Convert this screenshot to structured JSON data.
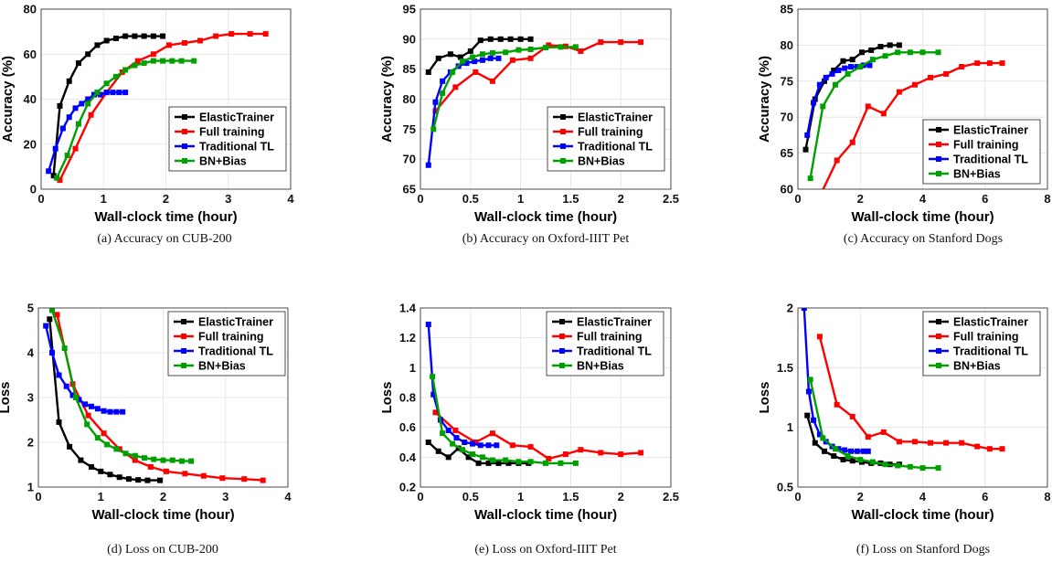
{
  "legend_entries": [
    "ElasticTrainer",
    "Full training",
    "Traditional TL",
    "BN+Bias"
  ],
  "series_colors": {
    "ElasticTrainer": "#000000",
    "Full training": "#ff0000",
    "Traditional TL": "#0000ff",
    "BN+Bias": "#00a000"
  },
  "chart_data": [
    {
      "type": "line",
      "caption": "(a) Accuracy on CUB-200",
      "xlabel": "Wall-clock time (hour)",
      "ylabel": "Accuracy (%)",
      "xlim": [
        0,
        4
      ],
      "ylim": [
        0,
        80
      ],
      "xticks": [
        "0",
        "1",
        "2",
        "3",
        "4"
      ],
      "yticks": [
        "0",
        "20",
        "40",
        "60",
        "80"
      ],
      "grid": true,
      "legend_position": "lower-right",
      "series": [
        {
          "name": "ElasticTrainer",
          "x": [
            0.2,
            0.3,
            0.45,
            0.6,
            0.75,
            0.9,
            1.05,
            1.2,
            1.35,
            1.5,
            1.65,
            1.8,
            1.95
          ],
          "y": [
            6,
            37,
            48,
            56,
            60,
            64,
            66,
            67,
            68,
            68,
            68,
            68,
            68
          ]
        },
        {
          "name": "Full training",
          "x": [
            0.3,
            0.55,
            0.8,
            1.05,
            1.3,
            1.55,
            1.8,
            2.05,
            2.3,
            2.55,
            2.8,
            3.05,
            3.35,
            3.6
          ],
          "y": [
            4,
            18,
            33,
            43,
            52,
            57,
            60,
            64,
            65,
            66,
            68,
            69,
            69,
            69
          ]
        },
        {
          "name": "Traditional TL",
          "x": [
            0.12,
            0.23,
            0.35,
            0.45,
            0.55,
            0.65,
            0.75,
            0.85,
            0.95,
            1.05,
            1.15,
            1.25,
            1.35
          ],
          "y": [
            8,
            18,
            27,
            32,
            36,
            38,
            40,
            42,
            42,
            43,
            43,
            43,
            43
          ]
        },
        {
          "name": "BN+Bias",
          "x": [
            0.25,
            0.42,
            0.6,
            0.75,
            0.9,
            1.05,
            1.2,
            1.35,
            1.5,
            1.65,
            1.8,
            1.95,
            2.1,
            2.25,
            2.45
          ],
          "y": [
            5,
            15,
            29,
            38,
            43,
            47,
            50,
            53,
            55,
            56,
            57,
            57,
            57,
            57,
            57
          ]
        }
      ]
    },
    {
      "type": "line",
      "caption": "(b) Accuracy on Oxford-IIIT Pet",
      "xlabel": "Wall-clock time (hour)",
      "ylabel": "Accuracy (%)",
      "xlim": [
        0,
        2.5
      ],
      "ylim": [
        65,
        95
      ],
      "xticks": [
        "0",
        "0.5",
        "1",
        "1.5",
        "2",
        "2.5"
      ],
      "yticks": [
        "65",
        "70",
        "75",
        "80",
        "85",
        "90",
        "95"
      ],
      "grid": true,
      "legend_position": "lower-right",
      "series": [
        {
          "name": "ElasticTrainer",
          "x": [
            0.08,
            0.18,
            0.3,
            0.4,
            0.5,
            0.6,
            0.7,
            0.8,
            0.9,
            1.0,
            1.1
          ],
          "y": [
            84.5,
            86.8,
            87.5,
            87,
            88,
            89.8,
            90,
            90,
            90,
            90,
            90
          ]
        },
        {
          "name": "Full training",
          "x": [
            0.15,
            0.35,
            0.55,
            0.72,
            0.92,
            1.1,
            1.28,
            1.45,
            1.6,
            1.8,
            2.0,
            2.2
          ],
          "y": [
            78,
            82,
            84.5,
            83,
            86.5,
            86.8,
            89,
            88.8,
            88,
            89.5,
            89.5,
            89.5
          ]
        },
        {
          "name": "Traditional TL",
          "x": [
            0.08,
            0.15,
            0.22,
            0.3,
            0.38,
            0.46,
            0.54,
            0.62,
            0.7,
            0.78
          ],
          "y": [
            69,
            79.5,
            83,
            84.5,
            85.5,
            86,
            86.3,
            86.5,
            86.8,
            86.8
          ]
        },
        {
          "name": "BN+Bias",
          "x": [
            0.13,
            0.22,
            0.32,
            0.42,
            0.52,
            0.62,
            0.72,
            0.85,
            0.98,
            1.1,
            1.25,
            1.4,
            1.55
          ],
          "y": [
            75,
            81,
            84.5,
            86.3,
            87,
            87.5,
            87.7,
            87.8,
            88.2,
            88.3,
            88.6,
            88.7,
            88.7
          ]
        }
      ]
    },
    {
      "type": "line",
      "caption": "(c) Accuracy on Stanford Dogs",
      "xlabel": "Wall-clock time (hour)",
      "ylabel": "Accuracy (%)",
      "xlim": [
        0,
        8
      ],
      "ylim": [
        60,
        85
      ],
      "xticks": [
        "0",
        "2",
        "4",
        "6",
        "8"
      ],
      "yticks": [
        "60",
        "65",
        "70",
        "75",
        "80",
        "85"
      ],
      "grid": true,
      "legend_position": "lower-right",
      "series": [
        {
          "name": "ElasticTrainer",
          "x": [
            0.25,
            0.55,
            0.85,
            1.15,
            1.45,
            1.75,
            2.05,
            2.35,
            2.65,
            2.95,
            3.25
          ],
          "y": [
            65.5,
            72.5,
            75,
            76.5,
            77.8,
            78,
            79,
            79.3,
            79.8,
            80,
            80
          ]
        },
        {
          "name": "Full training",
          "x": [
            0.7,
            1.25,
            1.75,
            2.25,
            2.75,
            3.25,
            3.75,
            4.25,
            4.75,
            5.25,
            5.75,
            6.15,
            6.55
          ],
          "y": [
            59,
            64,
            66.5,
            71.5,
            70.5,
            73.5,
            74.5,
            75.5,
            76,
            77,
            77.5,
            77.5,
            77.5
          ]
        },
        {
          "name": "Traditional TL",
          "x": [
            0.3,
            0.5,
            0.7,
            0.9,
            1.1,
            1.3,
            1.5,
            1.7,
            1.9,
            2.1,
            2.3
          ],
          "y": [
            67.5,
            72,
            74.5,
            75.5,
            76,
            76.5,
            76.8,
            77,
            77,
            77.2,
            77.2
          ]
        },
        {
          "name": "BN+Bias",
          "x": [
            0.4,
            0.8,
            1.2,
            1.6,
            2.0,
            2.4,
            2.8,
            3.2,
            3.6,
            4.0,
            4.5
          ],
          "y": [
            61.5,
            71.5,
            74.5,
            76,
            77,
            78,
            78.5,
            79,
            79,
            79,
            79
          ]
        }
      ]
    },
    {
      "type": "line",
      "caption": "(d) Loss on CUB-200",
      "xlabel": "Wall-clock time (hour)",
      "ylabel": "Loss",
      "xlim": [
        0,
        4
      ],
      "ylim": [
        1,
        5
      ],
      "xticks": [
        "0",
        "1",
        "2",
        "3",
        "4"
      ],
      "yticks": [
        "1",
        "2",
        "3",
        "4",
        "5"
      ],
      "grid": true,
      "legend_position": "top-right",
      "series": [
        {
          "name": "ElasticTrainer",
          "x": [
            0.18,
            0.33,
            0.5,
            0.68,
            0.85,
            1.0,
            1.15,
            1.3,
            1.45,
            1.6,
            1.75,
            1.95
          ],
          "y": [
            4.75,
            2.45,
            1.9,
            1.6,
            1.45,
            1.35,
            1.28,
            1.22,
            1.18,
            1.16,
            1.15,
            1.15
          ]
        },
        {
          "name": "Full training",
          "x": [
            0.3,
            0.55,
            0.8,
            1.05,
            1.3,
            1.55,
            1.8,
            2.05,
            2.35,
            2.65,
            2.95,
            3.3,
            3.6
          ],
          "y": [
            4.85,
            3.3,
            2.6,
            2.2,
            1.85,
            1.6,
            1.45,
            1.35,
            1.3,
            1.25,
            1.2,
            1.18,
            1.15
          ]
        },
        {
          "name": "Traditional TL",
          "x": [
            0.12,
            0.22,
            0.33,
            0.45,
            0.55,
            0.65,
            0.75,
            0.85,
            0.95,
            1.05,
            1.15,
            1.25,
            1.35
          ],
          "y": [
            4.6,
            4.0,
            3.5,
            3.25,
            3.05,
            2.95,
            2.85,
            2.8,
            2.75,
            2.7,
            2.68,
            2.68,
            2.68
          ]
        },
        {
          "name": "BN+Bias",
          "x": [
            0.22,
            0.42,
            0.6,
            0.78,
            0.95,
            1.1,
            1.25,
            1.4,
            1.55,
            1.7,
            1.85,
            2.0,
            2.15,
            2.3,
            2.45
          ],
          "y": [
            4.95,
            4.1,
            3.0,
            2.4,
            2.1,
            1.95,
            1.85,
            1.75,
            1.7,
            1.65,
            1.62,
            1.6,
            1.6,
            1.58,
            1.58
          ]
        }
      ]
    },
    {
      "type": "line",
      "caption": "(e) Loss on Oxford-IIIT Pet",
      "xlabel": "Wall-clock time (hour)",
      "ylabel": "Loss",
      "xlim": [
        0,
        2.5
      ],
      "ylim": [
        0.2,
        1.4
      ],
      "xticks": [
        "0",
        "0.5",
        "1",
        "1.5",
        "2",
        "2.5"
      ],
      "yticks": [
        "0.2",
        "0.4",
        "0.6",
        "0.8",
        "1",
        "1.2",
        "1.4"
      ],
      "grid": true,
      "legend_position": "top-right",
      "series": [
        {
          "name": "ElasticTrainer",
          "x": [
            0.08,
            0.18,
            0.28,
            0.38,
            0.48,
            0.58,
            0.68,
            0.78,
            0.88,
            0.98,
            1.08
          ],
          "y": [
            0.5,
            0.44,
            0.4,
            0.46,
            0.4,
            0.36,
            0.36,
            0.36,
            0.36,
            0.36,
            0.36
          ]
        },
        {
          "name": "Full training",
          "x": [
            0.15,
            0.35,
            0.55,
            0.72,
            0.92,
            1.1,
            1.28,
            1.45,
            1.6,
            1.8,
            2.0,
            2.2
          ],
          "y": [
            0.7,
            0.58,
            0.5,
            0.56,
            0.48,
            0.47,
            0.39,
            0.42,
            0.45,
            0.43,
            0.42,
            0.43
          ]
        },
        {
          "name": "Traditional TL",
          "x": [
            0.08,
            0.13,
            0.2,
            0.28,
            0.36,
            0.44,
            0.52,
            0.6,
            0.68,
            0.76
          ],
          "y": [
            1.29,
            0.82,
            0.65,
            0.58,
            0.53,
            0.5,
            0.49,
            0.48,
            0.48,
            0.48
          ]
        },
        {
          "name": "BN+Bias",
          "x": [
            0.12,
            0.22,
            0.32,
            0.42,
            0.52,
            0.62,
            0.72,
            0.85,
            0.98,
            1.1,
            1.25,
            1.4,
            1.55
          ],
          "y": [
            0.94,
            0.56,
            0.49,
            0.45,
            0.42,
            0.4,
            0.38,
            0.38,
            0.37,
            0.37,
            0.36,
            0.36,
            0.36
          ]
        }
      ]
    },
    {
      "type": "line",
      "caption": "(f) Loss on Stanford Dogs",
      "xlabel": "Wall-clock time (hour)",
      "ylabel": "Loss",
      "xlim": [
        0,
        8
      ],
      "ylim": [
        0.5,
        2
      ],
      "xticks": [
        "0",
        "2",
        "4",
        "6",
        "8"
      ],
      "yticks": [
        "0.5",
        "1",
        "1.5",
        "2"
      ],
      "grid": true,
      "legend_position": "top-right",
      "series": [
        {
          "name": "ElasticTrainer",
          "x": [
            0.3,
            0.55,
            0.85,
            1.15,
            1.45,
            1.75,
            2.05,
            2.35,
            2.65,
            2.95,
            3.25
          ],
          "y": [
            1.1,
            0.87,
            0.8,
            0.76,
            0.73,
            0.72,
            0.71,
            0.7,
            0.7,
            0.69,
            0.69
          ]
        },
        {
          "name": "Full training",
          "x": [
            0.7,
            1.25,
            1.75,
            2.25,
            2.75,
            3.25,
            3.75,
            4.25,
            4.75,
            5.25,
            5.75,
            6.15,
            6.55
          ],
          "y": [
            1.76,
            1.19,
            1.09,
            0.92,
            0.96,
            0.88,
            0.88,
            0.87,
            0.87,
            0.87,
            0.84,
            0.82,
            0.82
          ]
        },
        {
          "name": "Traditional TL",
          "x": [
            0.2,
            0.35,
            0.5,
            0.7,
            0.9,
            1.1,
            1.3,
            1.5,
            1.7,
            1.9,
            2.1,
            2.25
          ],
          "y": [
            2.0,
            1.3,
            1.06,
            0.94,
            0.88,
            0.84,
            0.82,
            0.81,
            0.8,
            0.8,
            0.8,
            0.8
          ]
        },
        {
          "name": "BN+Bias",
          "x": [
            0.4,
            0.8,
            1.2,
            1.6,
            2.0,
            2.4,
            2.8,
            3.2,
            3.6,
            4.0,
            4.5
          ],
          "y": [
            1.4,
            0.91,
            0.82,
            0.76,
            0.73,
            0.71,
            0.69,
            0.68,
            0.67,
            0.66,
            0.66
          ]
        }
      ]
    }
  ]
}
